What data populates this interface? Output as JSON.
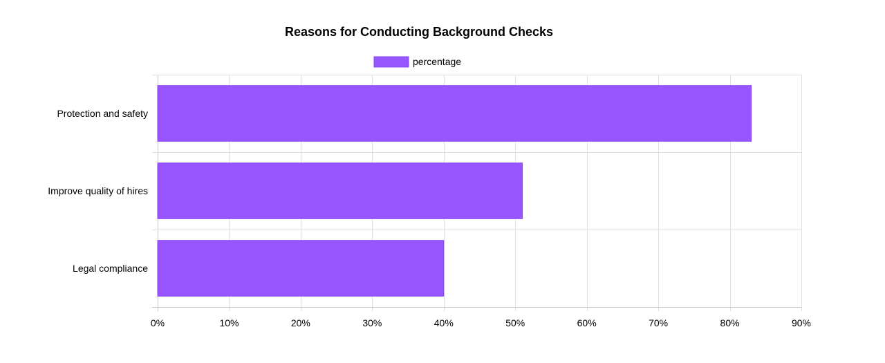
{
  "chart_data": {
    "type": "bar",
    "orientation": "horizontal",
    "title": "Reasons for Conducting Background Checks",
    "categories": [
      "Protection and safety",
      "Improve quality of hires",
      "Legal compliance"
    ],
    "series": [
      {
        "name": "percentage",
        "values": [
          83,
          51,
          40
        ],
        "color": "#9655ff",
        "border_color": "#8a45f5"
      }
    ],
    "x_ticks": [
      "0%",
      "10%",
      "20%",
      "30%",
      "40%",
      "50%",
      "60%",
      "70%",
      "80%",
      "90%"
    ],
    "xlim": [
      0,
      90
    ],
    "xlabel": "",
    "ylabel": "",
    "grid": true,
    "legend_position": "top"
  }
}
